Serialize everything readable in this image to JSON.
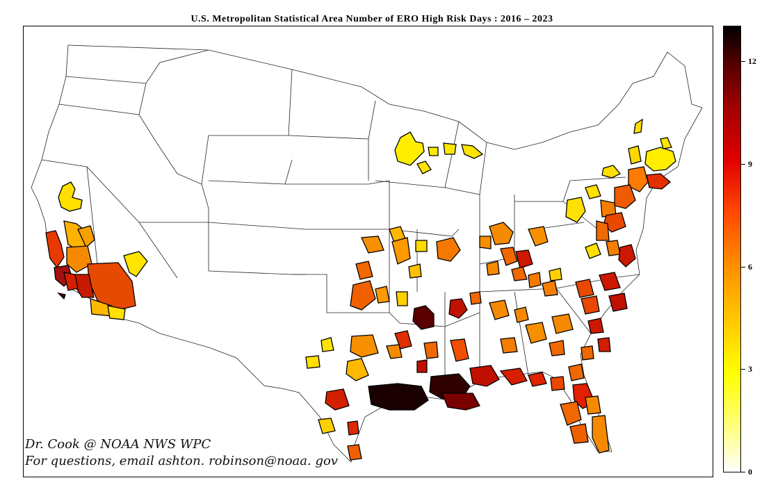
{
  "title": "U.S.  Metropolitan  Statistical  Area  Number  of  ERO  High  Risk  Days :  2016 – 2023",
  "credit_line1": "Dr.  Cook  @  NOAA  NWS  WPC",
  "credit_line2": "For  questions,  email  ashton. robinson@noaa. gov",
  "colorbar": {
    "min": 0,
    "max": 13,
    "ticks": [
      "0",
      "3",
      "6",
      "9",
      "12"
    ],
    "colors": [
      "#ffffff",
      "#ffff00",
      "#ff9000",
      "#e00000",
      "#000000"
    ]
  },
  "legend_scale_name": "hot_r"
}
